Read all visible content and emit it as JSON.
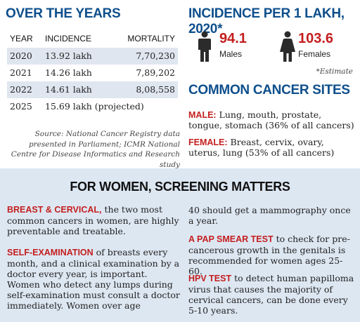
{
  "years": {
    "title": "OVER THE YEARS",
    "columns": [
      "YEAR",
      "INCIDENCE",
      "MORTALITY"
    ],
    "rows": [
      {
        "year": "2020",
        "incidence": "13.92 lakh",
        "mortality": "7,70,230"
      },
      {
        "year": "2021",
        "incidence": "14.26 lakh",
        "mortality": "7,89,202"
      },
      {
        "year": "2022",
        "incidence": "14.61 lakh",
        "mortality": "8,08,558"
      },
      {
        "year": "2025",
        "incidence": "15.69 lakh (projected)",
        "mortality": ""
      }
    ],
    "source": "Source: National Cancer Registry data presented in Parliament; ICMR National Centre for Disease Informatics and Research study"
  },
  "incidence": {
    "title": "INCIDENCE PER 1 LAKH, 2020*",
    "male_value": "94.1",
    "male_label": "Males",
    "female_value": "103.6",
    "female_label": "Females",
    "note": "*Estimate"
  },
  "sites": {
    "title": "COMMON CANCER SITES",
    "male_label": "MALE:",
    "male_text": " Lung, mouth, prostate, tongue, stomach (36% of all cancers)",
    "female_label": "FEMALE:",
    "female_text": " Breast, cervix, ovary, uterus, lung (53% of all cancers)"
  },
  "screening": {
    "title": "FOR WOMEN, SCREENING MATTERS",
    "breast_label": "BREAST & CERVICAL,",
    "breast_text": " the two most common cancers in women, are highly preventable and treatable.",
    "self_label": "SELF-EXAMINATION",
    "self_text": " of breasts every month, and a clinical examination by a doctor every year, is important. Women who detect any lumps during self-examination must consult a doctor immediately. Women over age",
    "mammo_text": "40 should get a mammography once a year.",
    "pap_label": "A PAP SMEAR TEST",
    "pap_text": " to check for pre-cancerous growth in the genitals is recommended for women ages 25-60.",
    "hpv_label": "HPV TEST",
    "hpv_text": " to detect human papilloma virus that causes the majority of cervical cancers, can be done every 5-10 years."
  },
  "colors": {
    "heading_blue": "#0e4f8c",
    "accent_red": "#c41e1e",
    "panel_bg": "#dde7f2",
    "row_shade": "#dfe6f0"
  },
  "icons": [
    "male-figure-icon",
    "female-figure-icon"
  ]
}
